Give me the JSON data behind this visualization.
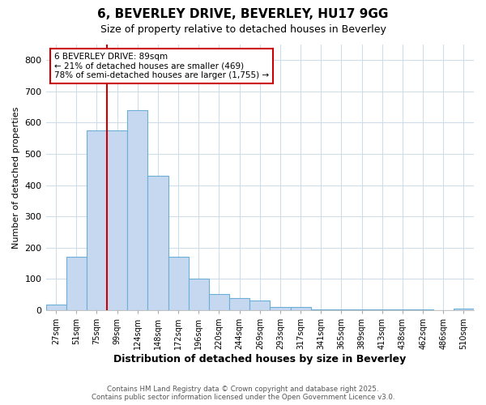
{
  "title_line1": "6, BEVERLEY DRIVE, BEVERLEY, HU17 9GG",
  "title_line2": "Size of property relative to detached houses in Beverley",
  "xlabel": "Distribution of detached houses by size in Beverley",
  "ylabel": "Number of detached properties",
  "footer_line1": "Contains HM Land Registry data © Crown copyright and database right 2025.",
  "footer_line2": "Contains public sector information licensed under the Open Government Licence v3.0.",
  "annotation_line1": "6 BEVERLEY DRIVE: 89sqm",
  "annotation_line2": "← 21% of detached houses are smaller (469)",
  "annotation_line3": "78% of semi-detached houses are larger (1,755) →",
  "bar_color": "#c5d8f0",
  "bar_edge_color": "#6baed6",
  "red_line_color": "#cc0000",
  "annotation_box_edge": "#cc0000",
  "categories": [
    "27sqm",
    "51sqm",
    "75sqm",
    "99sqm",
    "124sqm",
    "148sqm",
    "172sqm",
    "196sqm",
    "220sqm",
    "244sqm",
    "269sqm",
    "293sqm",
    "317sqm",
    "341sqm",
    "365sqm",
    "389sqm",
    "413sqm",
    "438sqm",
    "462sqm",
    "486sqm",
    "510sqm"
  ],
  "values": [
    18,
    170,
    575,
    575,
    640,
    430,
    172,
    100,
    52,
    40,
    32,
    10,
    10,
    3,
    3,
    3,
    3,
    3,
    3,
    0,
    5
  ],
  "ylim": [
    0,
    850
  ],
  "yticks": [
    0,
    100,
    200,
    300,
    400,
    500,
    600,
    700,
    800
  ],
  "red_line_x": 3.0,
  "background_color": "#ffffff",
  "plot_background_color": "#ffffff",
  "grid_color": "#d0dce8"
}
